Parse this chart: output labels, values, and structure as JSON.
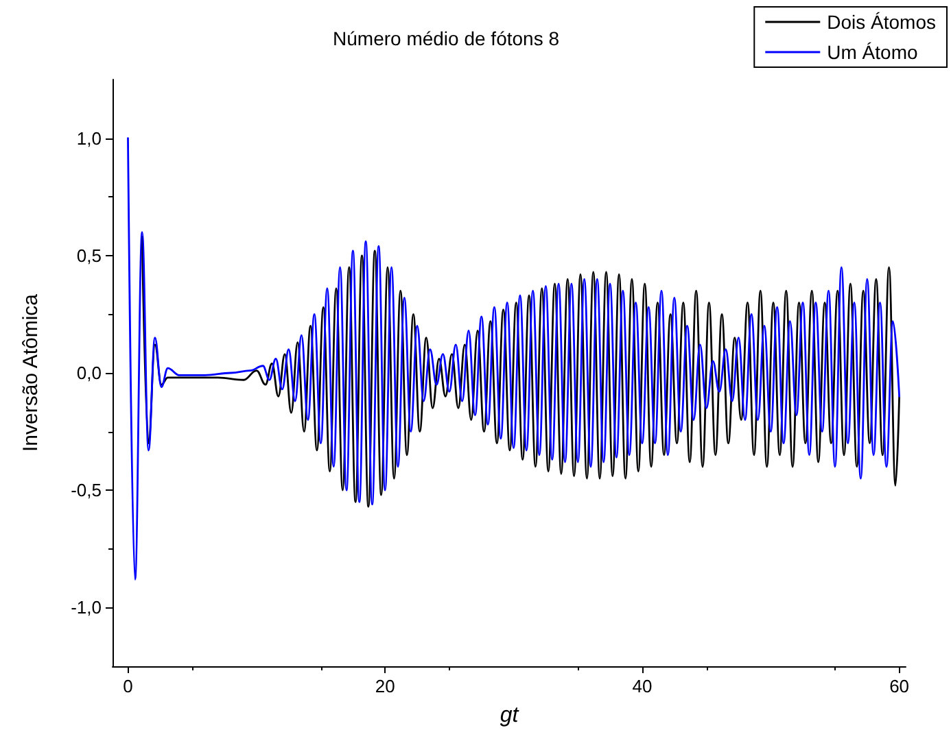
{
  "chart_data": {
    "type": "line",
    "title": "Número médio de fótons 8",
    "xlabel": "gt",
    "ylabel": "Inversão Atômica",
    "xlim": [
      -1.2,
      60.5
    ],
    "xticks": [
      0,
      20,
      40,
      60
    ],
    "ylim": [
      -1.25,
      1.25
    ],
    "yticks": [
      {
        "value": -1,
        "label": "-1,0"
      },
      {
        "value": -0.5,
        "label": "-0,5"
      },
      {
        "value": 0,
        "label": "0,0"
      },
      {
        "value": 0.5,
        "label": "0,5"
      },
      {
        "value": 1,
        "label": "1,0"
      }
    ],
    "grid": false,
    "legend": "top right",
    "marker": "none",
    "line_style": "solid",
    "series": [
      {
        "name": "Dois Átomos",
        "color": "#000000",
        "x": [
          1.1,
          1.6,
          2.1,
          2.6,
          3.1,
          5,
          7,
          9,
          10,
          10.7,
          11.2,
          11.7,
          12.2,
          12.7,
          13.2,
          13.7,
          14.2,
          14.7,
          15.2,
          15.7,
          16.2,
          16.7,
          17.2,
          17.7,
          18.2,
          18.7,
          19.2,
          19.7,
          20.2,
          20.7,
          21.2,
          21.7,
          22.2,
          22.7,
          23.2,
          23.7,
          24.2,
          24.7,
          25.2,
          25.7,
          26.2,
          26.7,
          27.2,
          27.7,
          28.2,
          28.7,
          29.2,
          29.7,
          30.2,
          30.7,
          31.2,
          31.7,
          32.2,
          32.7,
          33.2,
          33.7,
          34.2,
          34.7,
          35.2,
          35.7,
          36.2,
          36.7,
          37.2,
          37.7,
          38.2,
          38.7,
          39.2,
          39.7,
          40.2,
          40.7,
          41.2,
          41.7,
          42.2,
          42.7,
          43.2,
          43.7,
          44.2,
          44.7,
          45.2,
          45.7,
          46.2,
          46.7,
          47.2,
          47.7,
          48.2,
          48.7,
          49.2,
          49.7,
          50.2,
          50.7,
          51.2,
          51.7,
          52.2,
          52.7,
          53.2,
          53.7,
          54.2,
          54.7,
          55.2,
          55.7,
          56.2,
          56.7,
          57.2,
          57.7,
          58.2,
          58.7,
          59.2,
          59.7,
          60
        ],
        "values": [
          0.58,
          -0.3,
          0.12,
          -0.05,
          -0.02,
          -0.02,
          -0.02,
          -0.03,
          0.01,
          -0.05,
          0.04,
          -0.1,
          0.08,
          -0.17,
          0.13,
          -0.25,
          0.2,
          -0.33,
          0.28,
          -0.42,
          0.36,
          -0.5,
          0.45,
          -0.55,
          0.5,
          -0.57,
          0.52,
          -0.52,
          0.45,
          -0.45,
          0.35,
          -0.35,
          0.25,
          -0.25,
          0.15,
          -0.15,
          0.06,
          -0.1,
          0.08,
          -0.15,
          0.12,
          -0.2,
          0.18,
          -0.25,
          0.22,
          -0.3,
          0.27,
          -0.33,
          0.3,
          -0.37,
          0.33,
          -0.4,
          0.36,
          -0.42,
          0.38,
          -0.43,
          0.4,
          -0.44,
          0.42,
          -0.45,
          0.43,
          -0.45,
          0.43,
          -0.44,
          0.42,
          -0.45,
          0.4,
          -0.42,
          0.38,
          -0.4,
          0.3,
          -0.35,
          0.25,
          -0.3,
          0.3,
          -0.38,
          0.35,
          -0.4,
          0.3,
          -0.35,
          0.25,
          -0.3,
          0.15,
          -0.2,
          0.3,
          -0.35,
          0.35,
          -0.4,
          0.3,
          -0.35,
          0.35,
          -0.4,
          0.3,
          -0.3,
          0.35,
          -0.38,
          0.3,
          -0.3,
          0.35,
          -0.35,
          0.38,
          -0.4,
          0.35,
          -0.3,
          0.4,
          -0.35,
          0.45,
          -0.48,
          -0.1
        ]
      },
      {
        "name": "Um Átomo",
        "color": "#0000ff",
        "x": [
          0,
          0.55,
          1.1,
          1.6,
          2.1,
          2.6,
          3.1,
          4,
          6,
          8,
          9.5,
          10.5,
          11,
          11.5,
          12,
          12.5,
          13,
          13.5,
          14,
          14.5,
          15,
          15.5,
          16,
          16.5,
          17,
          17.5,
          18,
          18.5,
          19,
          19.5,
          20,
          20.5,
          21,
          21.5,
          22,
          22.5,
          23,
          23.5,
          24,
          24.5,
          25,
          25.5,
          26,
          26.5,
          27,
          27.5,
          28,
          28.5,
          29,
          29.5,
          30,
          30.5,
          31,
          31.5,
          32,
          32.5,
          33,
          33.5,
          34,
          34.5,
          35,
          35.5,
          36,
          36.5,
          37,
          37.5,
          38,
          38.5,
          39,
          39.5,
          40,
          40.5,
          41,
          41.5,
          42,
          42.5,
          43,
          43.5,
          44,
          44.5,
          45,
          45.5,
          46,
          46.5,
          47,
          47.5,
          48,
          48.5,
          49,
          49.5,
          50,
          50.5,
          51,
          51.5,
          52,
          52.5,
          53,
          53.5,
          54,
          54.5,
          55,
          55.5,
          56,
          56.5,
          57,
          57.5,
          58,
          58.5,
          59,
          59.5,
          60
        ],
        "values": [
          1.0,
          -0.88,
          0.6,
          -0.33,
          0.15,
          -0.06,
          0.02,
          -0.01,
          -0.01,
          0.0,
          0.01,
          0.03,
          -0.03,
          0.06,
          -0.07,
          0.1,
          -0.12,
          0.16,
          -0.2,
          0.25,
          -0.3,
          0.36,
          -0.4,
          0.45,
          -0.5,
          0.52,
          -0.55,
          0.56,
          -0.56,
          0.54,
          -0.5,
          0.45,
          -0.4,
          0.32,
          -0.25,
          0.2,
          -0.12,
          0.1,
          -0.05,
          0.08,
          -0.08,
          0.12,
          -0.12,
          0.18,
          -0.18,
          0.24,
          -0.22,
          0.28,
          -0.28,
          0.3,
          -0.32,
          0.33,
          -0.33,
          0.35,
          -0.35,
          0.37,
          -0.37,
          0.38,
          -0.38,
          0.38,
          -0.38,
          0.4,
          -0.4,
          0.4,
          -0.38,
          0.38,
          -0.36,
          0.35,
          -0.35,
          0.3,
          -0.3,
          0.28,
          -0.3,
          0.35,
          -0.35,
          0.32,
          -0.25,
          0.2,
          -0.2,
          0.12,
          -0.15,
          0.05,
          -0.08,
          0.1,
          -0.12,
          0.15,
          -0.2,
          0.25,
          -0.2,
          0.2,
          -0.25,
          0.28,
          -0.3,
          0.22,
          -0.18,
          0.3,
          -0.35,
          0.3,
          -0.25,
          0.35,
          -0.4,
          0.45,
          -0.3,
          0.3,
          -0.45,
          0.4,
          -0.35,
          0.3,
          -0.4,
          0.22,
          -0.1
        ]
      }
    ]
  }
}
